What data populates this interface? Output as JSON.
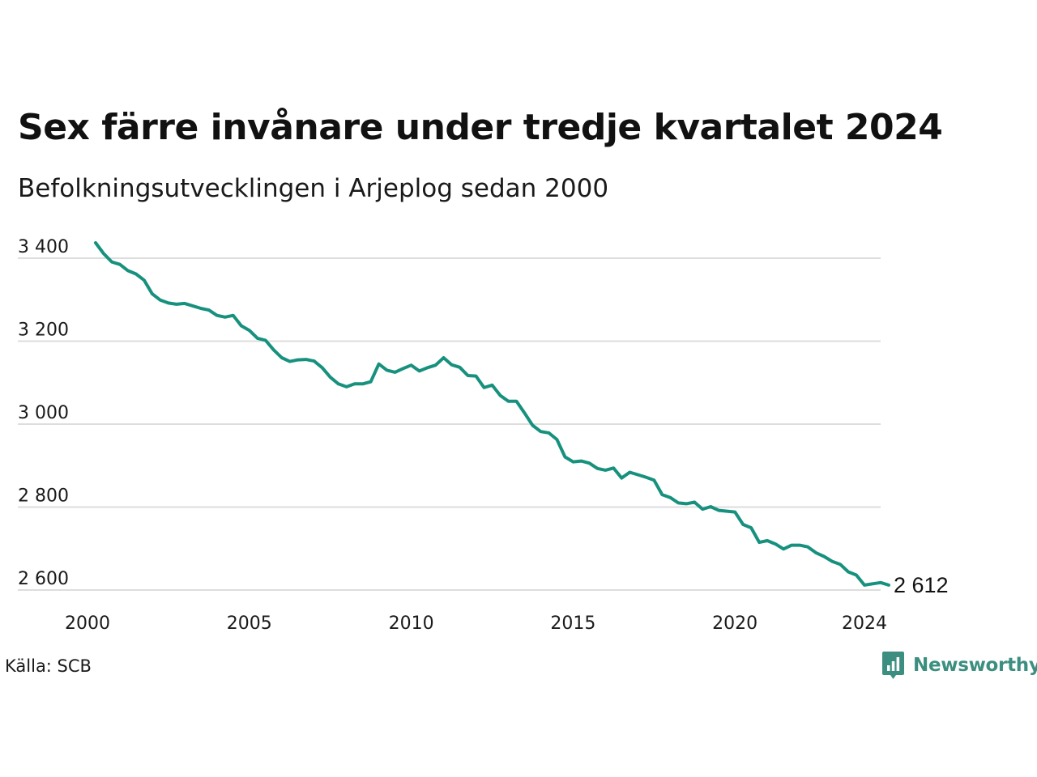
{
  "title": "Sex färre invånare under tredje kvartalet 2024",
  "subtitle": "Befolkningsutvecklingen i Arjeplog sedan 2000",
  "source": "Källa: SCB",
  "brand": {
    "name": "Newsworthy",
    "icon": "newsworthy-logo-icon",
    "color": "#3c8f80"
  },
  "colors": {
    "line": "#17917e",
    "grid": "#dddddd"
  },
  "chart_data": {
    "type": "line",
    "title": "Sex färre invånare under tredje kvartalet 2024",
    "subtitle": "Befolkningsutvecklingen i Arjeplog sedan 2000",
    "xlabel": "",
    "ylabel": "",
    "xlim": [
      2000,
      2024.5
    ],
    "ylim": [
      2590,
      3440
    ],
    "x_ticks": [
      2000,
      2005,
      2010,
      2015,
      2020,
      2024
    ],
    "x_tick_labels": [
      "2000",
      "2005",
      "2010",
      "2015",
      "2020",
      "2024"
    ],
    "y_ticks": [
      2600,
      2800,
      3000,
      3200,
      3400
    ],
    "y_tick_labels": [
      "2 600",
      "2 800",
      "3 000",
      "3 200",
      "3 400"
    ],
    "grid": "horizontal",
    "legend": "none",
    "end_label": "2 612",
    "series": [
      {
        "x_start": 2000.25,
        "x_step": 0.25,
        "values": [
          3437,
          3411,
          3391,
          3385,
          3370,
          3362,
          3347,
          3314,
          3299,
          3292,
          3289,
          3291,
          3285,
          3279,
          3275,
          3262,
          3258,
          3262,
          3237,
          3226,
          3207,
          3202,
          3179,
          3160,
          3151,
          3155,
          3156,
          3152,
          3136,
          3113,
          3097,
          3090,
          3097,
          3097,
          3102,
          3145,
          3130,
          3125,
          3134,
          3142,
          3128,
          3136,
          3142,
          3160,
          3143,
          3137,
          3117,
          3116,
          3088,
          3094,
          3069,
          3055,
          3055,
          3027,
          2997,
          2982,
          2979,
          2963,
          2921,
          2909,
          2911,
          2906,
          2893,
          2889,
          2894,
          2870,
          2884,
          2878,
          2872,
          2865,
          2830,
          2823,
          2810,
          2808,
          2812,
          2795,
          2801,
          2792,
          2790,
          2788,
          2758,
          2750,
          2715,
          2719,
          2711,
          2699,
          2708,
          2708,
          2704,
          2690,
          2681,
          2669,
          2662,
          2644,
          2636,
          2612,
          2615,
          2618,
          2612
        ]
      }
    ]
  }
}
